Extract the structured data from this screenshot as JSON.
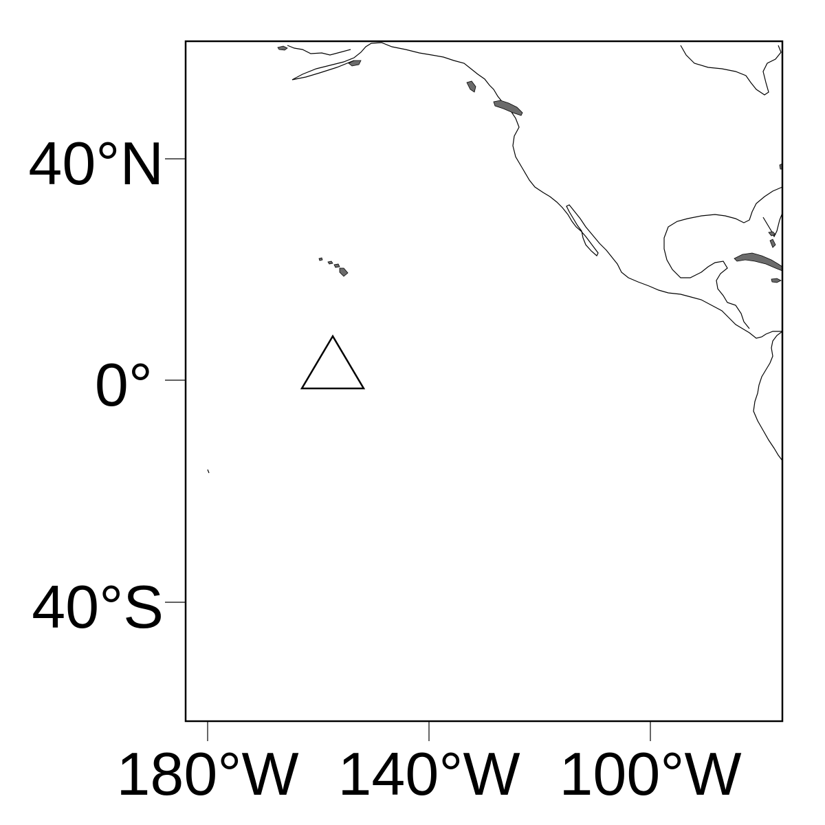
{
  "map": {
    "y_axis_labels": [
      "40°N",
      "0°",
      "40°S"
    ],
    "x_axis_labels": [
      "180°W",
      "140°W",
      "100°W"
    ],
    "land_fill_color": "#6b6b6b",
    "coastline_color": "#000000",
    "background_color": "#ffffff",
    "marker": {
      "shape": "open-triangle",
      "lon": -157.5,
      "lat": 0.5
    }
  }
}
